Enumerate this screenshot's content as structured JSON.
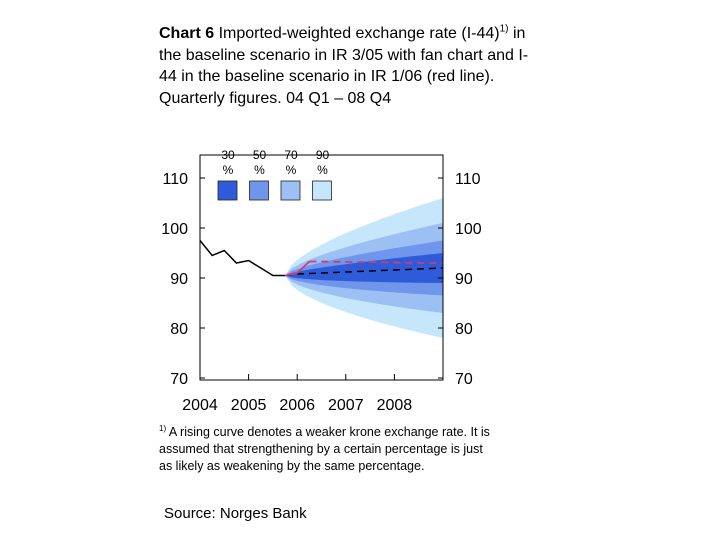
{
  "title": {
    "label": "Chart 6",
    "text_part1": " Imported-weighted exchange rate (I-44)",
    "sup": "1)",
    "text_part2": " in the baseline scenario in IR 3/05 with fan chart and I-44 in the baseline scenario in IR 1/06 (red line). Quarterly figures. 04 Q1 – 08 Q4"
  },
  "chart_data": {
    "type": "line",
    "title": "",
    "xlabel": "",
    "ylabel": "",
    "ylim": [
      70,
      110
    ],
    "xlim": [
      2004,
      2009
    ],
    "x_ticks": [
      "2004",
      "2005",
      "2006",
      "2007",
      "2008"
    ],
    "y_ticks": [
      70,
      80,
      90,
      100,
      110
    ],
    "y_ticks_left": [
      "110",
      "100",
      "90",
      "80",
      "70"
    ],
    "y_ticks_right": [
      "110",
      "100",
      "90",
      "80",
      "70"
    ],
    "grid": false,
    "fan_legend": [
      {
        "label": "30 %",
        "color": "#2f5bd9"
      },
      {
        "label": "50 %",
        "color": "#6f96ea"
      },
      {
        "label": "70 %",
        "color": "#9cc0f4"
      },
      {
        "label": "90 %",
        "color": "#c6e6fb"
      }
    ],
    "fan_center": {
      "x": [
        2005.75,
        2009.0
      ],
      "y": [
        90.5,
        92
      ]
    },
    "fan_half_width_at_end": {
      "30 %": 3,
      "50 %": 5.5,
      "70 %": 9,
      "90 %": 14
    },
    "series": [
      {
        "color": "#000000",
        "style": "solid",
        "x": [
          2004.0,
          2004.25,
          2004.5,
          2004.75,
          2005.0,
          2005.25,
          2005.5,
          2005.75
        ],
        "y": [
          97.5,
          94.5,
          95.5,
          93.0,
          93.5,
          92.0,
          90.5,
          90.5
        ]
      },
      {
        "color": "#000000",
        "style": "dashed",
        "x": [
          2005.75,
          2006.0,
          2006.5,
          2007.0,
          2007.5,
          2008.0,
          2008.5,
          2009.0
        ],
        "y": [
          90.5,
          90.8,
          91.0,
          91.2,
          91.4,
          91.6,
          91.8,
          92.0
        ]
      },
      {
        "color": "#d63a6a",
        "style": "solid-then-dashed",
        "x": [
          2005.75,
          2006.0,
          2006.25,
          2006.5,
          2007.0,
          2007.5,
          2008.0,
          2008.5,
          2009.0
        ],
        "y": [
          90.5,
          91.0,
          93.3,
          93.3,
          93.2,
          93.2,
          93.1,
          93.0,
          93.0
        ]
      }
    ]
  },
  "footnote": {
    "sup": "1)",
    "text": " A rising curve denotes a weaker krone exchange rate. It is assumed that strengthening by a certain percentage is just as likely as weakening by the same percentage."
  },
  "source": "Source: Norges Bank"
}
